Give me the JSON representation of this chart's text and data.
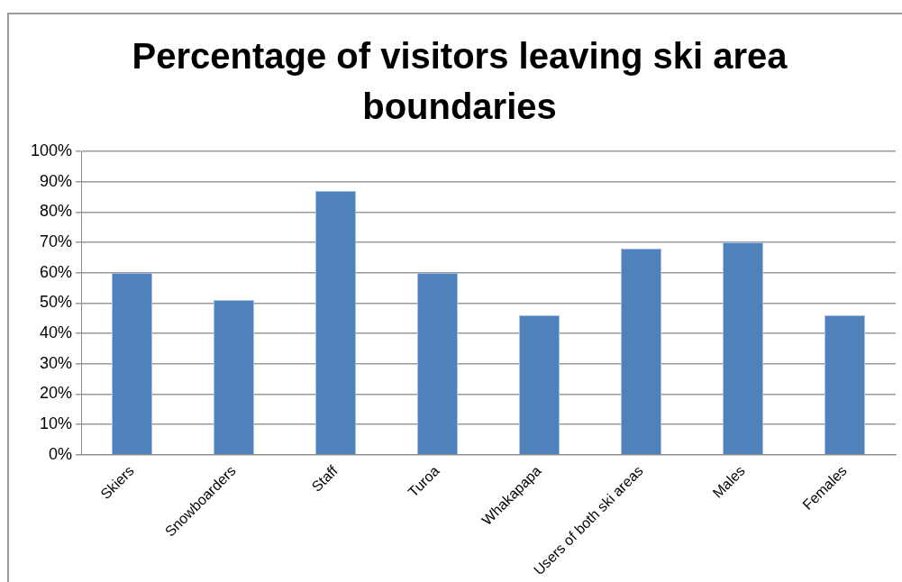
{
  "chart_data": {
    "type": "bar",
    "title": "Percentage of visitors leaving ski area boundaries",
    "categories": [
      "Skiers",
      "Snowboarders",
      "Staff",
      "Turoa",
      "Whakapapa",
      "Users of both ski areas",
      "Males",
      "Females"
    ],
    "values": [
      60,
      51,
      87,
      60,
      46,
      68,
      70,
      46
    ],
    "color": "#4f81bd",
    "ylim": [
      0,
      100
    ],
    "yticks": [
      {
        "value": 0,
        "label": "0%"
      },
      {
        "value": 10,
        "label": "10%"
      },
      {
        "value": 20,
        "label": "20%"
      },
      {
        "value": 30,
        "label": "30%"
      },
      {
        "value": 40,
        "label": "40%"
      },
      {
        "value": 50,
        "label": "50%"
      },
      {
        "value": 60,
        "label": "60%"
      },
      {
        "value": 70,
        "label": "70%"
      },
      {
        "value": 80,
        "label": "80%"
      },
      {
        "value": 90,
        "label": "90%"
      },
      {
        "value": 100,
        "label": "100%"
      }
    ],
    "grid": "y",
    "legend": false
  }
}
